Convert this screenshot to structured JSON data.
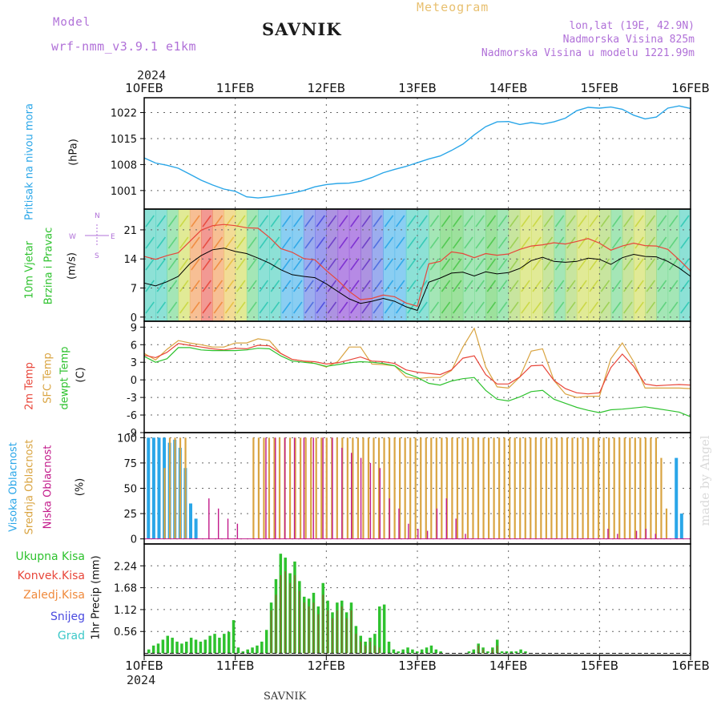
{
  "header": {
    "model_label": "Model",
    "model_name": "wrf-nmm_v3.9.1 e1km",
    "station": "SAVNIK",
    "meteogram": "Meteogram",
    "lonlat": "lon,lat (19E, 42.9N)",
    "elevation": "Nadmorska Visina 825m",
    "model_elevation": "Nadmorska Visina u modelu 1221.99m",
    "year_top": "2024",
    "year_bottom": "2024",
    "footer_station": "SAVNIK",
    "watermark": "made by Angel"
  },
  "colors": {
    "pressure": "#2aa6e8",
    "gust": "#e8463a",
    "wind_mean": "#000000",
    "temp2m": "#e8463a",
    "sfc_temp": "#d9a441",
    "dewpt": "#2ec22e",
    "high_cloud": "#2aa6e8",
    "mid_cloud": "#d9a441",
    "low_cloud": "#c21a8a",
    "total_precip": "#2ec22e",
    "conv_precip": "#e8463a",
    "frozen_precip": "#f08a3c",
    "snow": "#4a4ae0",
    "hail": "#3cc8c8",
    "title_purple": "#b070d8",
    "title_orange": "#e8c070"
  },
  "chart_data": [
    {
      "type": "line",
      "name_panel": "pressure",
      "title": "",
      "ylabel_lines": [
        "Pritisak na nivou mora",
        "(hPa)"
      ],
      "ylim": [
        996,
        1026
      ],
      "yticks": [
        1001,
        1008,
        1015,
        1022
      ],
      "x_ticks": [
        "10FEB",
        "11FEB",
        "12FEB",
        "13FEB",
        "14FEB",
        "15FEB",
        "16FEB"
      ],
      "x_step_hours": 6,
      "series": [
        {
          "values": [
            1009.8,
            1008.4,
            1007.8,
            1007,
            1005.4,
            1003.8,
            1002.5,
            1001.4,
            1000.8,
            999.3,
            999,
            999.3,
            999.8,
            1000.3,
            1001,
            1002,
            1002.6,
            1002.9,
            1003,
            1003.5,
            1004.5,
            1005.8,
            1006.7,
            1007.5,
            1008.5,
            1009.5,
            1010.3,
            1011.8,
            1013.5,
            1016,
            1018.2,
            1019.5,
            1019.6,
            1018.8,
            1019.3,
            1018.9,
            1019.5,
            1020.5,
            1022.5,
            1023.4,
            1023.2,
            1023.5,
            1022.9,
            1021.3,
            1020.3,
            1020.8,
            1023.2,
            1023.8,
            1023.1
          ]
        }
      ]
    },
    {
      "type": "line",
      "name_panel": "wind",
      "title": "",
      "ylabel_lines": [
        "10m Vjetar",
        "Brzina i Pravac",
        "(m/s)"
      ],
      "direction_key": {
        "north": "N",
        "east": "E",
        "west": "W",
        "south": "S"
      },
      "ylim": [
        -1,
        26
      ],
      "yticks": [
        0,
        7,
        14,
        21
      ],
      "series": [
        {
          "name": "mean",
          "values": [
            8.2,
            7.5,
            8.5,
            9.8,
            12.8,
            14.8,
            16.2,
            16.6,
            15.8,
            15.3,
            14.2,
            13,
            11.4,
            10.2,
            9.8,
            9.5,
            8,
            6.2,
            4.4,
            3.3,
            3.8,
            4.5,
            3.8,
            2.5,
            1.6,
            8.4,
            9.4,
            10.6,
            10.8,
            9.9,
            10.9,
            10.4,
            10.7,
            11.7,
            13.6,
            14.4,
            13.4,
            13.2,
            13.4,
            14.2,
            13.9,
            12.7,
            14.3,
            15.1,
            14.6,
            14.5,
            13.4,
            11.8,
            9.8
          ]
        },
        {
          "name": "gust",
          "values": [
            14.6,
            13.9,
            14.8,
            15.5,
            18.2,
            20.9,
            22,
            22.3,
            22,
            21.5,
            21.4,
            19.2,
            16.5,
            15.6,
            14.1,
            13.8,
            11.2,
            8.9,
            6.2,
            4.2,
            4.5,
            5.3,
            4.9,
            3.4,
            2.6,
            12.8,
            13.4,
            15.7,
            15.3,
            14.3,
            15.3,
            14.9,
            15.2,
            16.3,
            17.1,
            17.4,
            17.9,
            17.6,
            18.2,
            18.9,
            17.8,
            16.1,
            17.1,
            17.8,
            17.2,
            17.1,
            16.3,
            13.8,
            11.1
          ]
        }
      ],
      "colorbands": [
        "#2fc9b4",
        "#2fc9b4",
        "#5ad27a",
        "#c9d840",
        "#f08a3c",
        "#e8463a",
        "#f08a3c",
        "#e8c040",
        "#c9d840",
        "#5ad27a",
        "#2fc9b4",
        "#2fc9b4",
        "#2aa6e8",
        "#2aa6e8",
        "#4a6ae0",
        "#4a4ae0",
        "#6a3ac8",
        "#7a2ad0",
        "#7a2ad0",
        "#6a3ac8",
        "#4a6ae0",
        "#2aa6e8",
        "#2aa6e8",
        "#2fc9b4",
        "#2fc9b4",
        "#5ad27a",
        "#4cc84c",
        "#4cc84c",
        "#5ad27a",
        "#5ad27a",
        "#4cc84c",
        "#5ad27a",
        "#9ad050",
        "#c9d840",
        "#c9d840",
        "#9ad050",
        "#5ad27a",
        "#9ad050",
        "#c9d840",
        "#c9d840",
        "#9ad050",
        "#5ad27a",
        "#9ad050",
        "#c9d840",
        "#9ad050",
        "#5ad27a",
        "#5ad27a",
        "#2fc9b4"
      ]
    },
    {
      "type": "line",
      "name_panel": "temperature",
      "title": "",
      "ylabel_lines": [
        "2m Temp",
        "SFC Temp",
        "dewpt Temp",
        "(C)"
      ],
      "ylim": [
        -9,
        10
      ],
      "yticks": [
        -9,
        -6,
        -3,
        0,
        3,
        6,
        9
      ],
      "series": [
        {
          "name": "2m Temp",
          "values": [
            4.2,
            3.8,
            4.7,
            6.2,
            5.9,
            5.6,
            5.3,
            5.1,
            5.4,
            5.3,
            5.9,
            5.8,
            4.5,
            3.5,
            3.2,
            3.1,
            2.7,
            2.9,
            3.4,
            3.9,
            3.2,
            3.1,
            2.8,
            1.7,
            1.3,
            1.1,
            0.9,
            1.7,
            3.7,
            4.1,
            0.9,
            -0.7,
            -0.7,
            0.5,
            2.4,
            2.5,
            -0.1,
            -1.5,
            -2.2,
            -2.4,
            -2.2,
            2.1,
            4.4,
            2.3,
            -0.7,
            -1,
            -0.9,
            -0.8,
            -0.9
          ]
        },
        {
          "name": "SFC Temp",
          "values": [
            4.5,
            3.4,
            5.2,
            6.7,
            6.3,
            6,
            5.6,
            5.6,
            6.3,
            6.3,
            7,
            6.7,
            4.5,
            3.5,
            3.2,
            2.8,
            2.2,
            3.1,
            5.6,
            5.6,
            2.7,
            2.6,
            2.4,
            0.5,
            0.2,
            0.4,
            0.4,
            1.6,
            5.6,
            8.8,
            2.2,
            -1.2,
            -1.4,
            0.5,
            4.9,
            5.3,
            -0.1,
            -2.4,
            -3,
            -2.8,
            -2.8,
            3.6,
            6.3,
            3.1,
            -1.4,
            -1.4,
            -1.4,
            -1.4,
            -1.5
          ]
        },
        {
          "name": "dewpt Temp",
          "values": [
            4,
            3,
            3.6,
            5.5,
            5.5,
            5.1,
            5,
            5,
            5,
            5.1,
            5.4,
            5.3,
            4.1,
            3.2,
            3,
            2.8,
            2.3,
            2.6,
            2.9,
            3.1,
            3,
            2.8,
            2.4,
            1.1,
            0.4,
            -0.6,
            -0.9,
            -0.2,
            0.2,
            0.4,
            -1.8,
            -3.3,
            -3.6,
            -2.9,
            -2,
            -1.8,
            -3.3,
            -4,
            -4.7,
            -5.2,
            -5.6,
            -5.1,
            -5,
            -4.8,
            -4.6,
            -4.9,
            -5.2,
            -5.5,
            -6.3
          ]
        }
      ]
    },
    {
      "type": "bar",
      "name_panel": "clouds",
      "title": "",
      "ylabel_lines": [
        "Visoka Oblacnost",
        "Srednja Oblacnost",
        "Niska Oblacnost",
        "(%)"
      ],
      "ylim": [
        -5,
        105
      ],
      "yticks": [
        0,
        25,
        50,
        75,
        100
      ],
      "series": [
        {
          "name": "Visoka Oblacnost",
          "values": [
            100,
            100,
            100,
            100,
            95,
            98,
            90,
            70,
            35,
            20,
            0,
            0,
            0,
            0,
            0,
            0,
            0,
            0,
            0,
            0,
            0,
            0,
            0,
            0,
            0,
            0,
            0,
            0,
            0,
            0,
            0,
            0,
            0,
            0,
            0,
            0,
            0,
            0,
            0,
            0,
            0,
            0,
            0,
            0,
            0,
            0,
            0,
            0,
            0,
            0,
            0,
            0,
            0,
            0,
            0,
            0,
            0,
            0,
            0,
            0,
            0,
            0,
            0,
            0,
            0,
            0,
            0,
            0,
            0,
            0,
            0,
            0,
            0,
            0,
            0,
            0,
            0,
            0,
            0,
            0,
            0,
            0,
            0,
            0,
            0,
            0,
            0,
            0,
            0,
            0,
            0,
            0,
            0,
            0,
            0,
            0,
            0,
            0,
            0,
            0,
            80,
            25,
            0
          ]
        },
        {
          "name": "Srednja Oblacnost",
          "values": [
            0,
            0,
            0,
            70,
            100,
            100,
            100,
            100,
            0,
            0,
            0,
            0,
            0,
            0,
            0,
            0,
            0,
            0,
            0,
            0,
            100,
            100,
            100,
            100,
            100,
            100,
            100,
            100,
            100,
            100,
            100,
            100,
            100,
            100,
            100,
            100,
            100,
            100,
            100,
            100,
            100,
            100,
            100,
            100,
            100,
            100,
            100,
            100,
            100,
            100,
            100,
            100,
            100,
            100,
            100,
            100,
            100,
            100,
            100,
            100,
            100,
            100,
            100,
            100,
            100,
            100,
            100,
            100,
            100,
            100,
            100,
            100,
            100,
            100,
            100,
            100,
            100,
            100,
            100,
            100,
            100,
            100,
            100,
            100,
            100,
            100,
            100,
            100,
            100,
            100,
            100,
            100,
            100,
            100,
            100,
            100,
            100,
            100,
            80,
            30,
            0,
            0,
            0,
            0
          ]
        },
        {
          "name": "Niska Oblacnost",
          "values": [
            0,
            0,
            0,
            0,
            0,
            0,
            40,
            30,
            20,
            15,
            0,
            0,
            100,
            100,
            100,
            100,
            100,
            100,
            100,
            100,
            90,
            85,
            80,
            75,
            70,
            40,
            30,
            15,
            10,
            8,
            30,
            40,
            20,
            5,
            0,
            0,
            0,
            0,
            0,
            0,
            0,
            0,
            0,
            0,
            0,
            0,
            0,
            0,
            10,
            5,
            0,
            8,
            10,
            5,
            0,
            0,
            0
          ]
        }
      ]
    },
    {
      "type": "bar",
      "name_panel": "precip",
      "title": "",
      "legend": [
        "Ukupna Kisa",
        "Konvek.Kisa",
        "Zaledj.Kisa",
        "Snijeg",
        "Grad"
      ],
      "ylabel": "1hr Precip (mm)",
      "ylim": [
        -0.05,
        2.8
      ],
      "yticks": [
        0.56,
        1.12,
        1.68,
        2.24
      ],
      "series": [
        {
          "name": "Ukupna Kisa",
          "values": [
            0.1,
            0.2,
            0.25,
            0.35,
            0.45,
            0.4,
            0.3,
            0.25,
            0.3,
            0.4,
            0.35,
            0.3,
            0.35,
            0.45,
            0.5,
            0.4,
            0.5,
            0.55,
            0.85,
            0.15,
            0.05,
            0.1,
            0.15,
            0.2,
            0.3,
            0.6,
            1.3,
            1.9,
            2.55,
            2.45,
            2.05,
            2.35,
            1.85,
            1.45,
            1.4,
            1.55,
            1.2,
            1.8,
            1.35,
            1.05,
            1.3,
            1.35,
            1.05,
            1.3,
            0.7,
            0.45,
            0.3,
            0.4,
            0.5,
            1.2,
            1.25,
            0.3,
            0.1,
            0.05,
            0.1,
            0.15,
            0.1,
            0.05,
            0.1,
            0.15,
            0.2,
            0.1,
            0.05,
            0,
            0,
            0,
            0,
            0,
            0.05,
            0.1,
            0.25,
            0.15,
            0.05,
            0.15,
            0.35,
            0.05,
            0.05,
            0.05,
            0.05,
            0.1,
            0.05
          ]
        },
        {
          "name": "Konvek.Kisa",
          "values": [
            0,
            0,
            0,
            0,
            0,
            0,
            0,
            0,
            0,
            0,
            0,
            0,
            0,
            0,
            0,
            0,
            0,
            0,
            0,
            0,
            0,
            0,
            0,
            0,
            0,
            0,
            1.1,
            1.5,
            2,
            2.1,
            1.8,
            2,
            1.6,
            1.3,
            1.2,
            1.3,
            1,
            1.5,
            1.1,
            0.9,
            1.1,
            1.2,
            0.9,
            1.1,
            0.5,
            0.3,
            0.2,
            0.3,
            0.2,
            0.15,
            0,
            0,
            0,
            0,
            0,
            0,
            0,
            0,
            0,
            0,
            0,
            0,
            0,
            0,
            0,
            0,
            0,
            0,
            0,
            0,
            0.2,
            0.1,
            0,
            0.1,
            0.2,
            0,
            0,
            0,
            0,
            0,
            0
          ]
        }
      ]
    }
  ]
}
